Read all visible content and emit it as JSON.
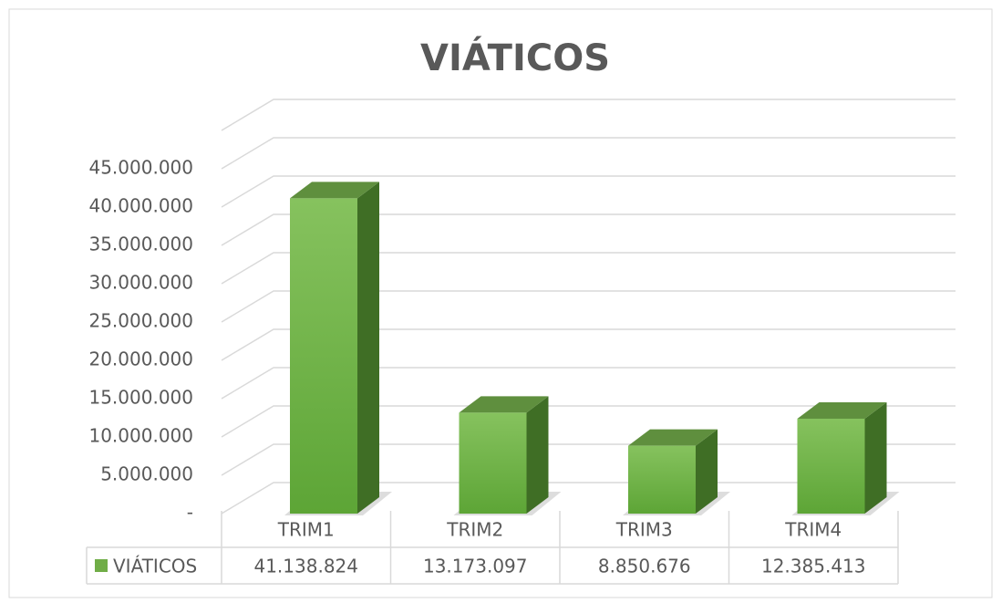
{
  "chart_data": {
    "type": "bar",
    "title": "VIÁTICOS",
    "categories": [
      "TRIM1",
      "TRIM2",
      "TRIM3",
      "TRIM4"
    ],
    "series": [
      {
        "name": "VIÁTICOS",
        "color": "#70ad47",
        "values": [
          41138824,
          13173097,
          8850676,
          12385413
        ],
        "value_labels": [
          "41.138.824",
          "13.173.097",
          "8.850.676",
          "12.385.413"
        ]
      }
    ],
    "ylim": [
      0,
      50000000
    ],
    "yticks": [
      {
        "value": 0,
        "label": "-"
      },
      {
        "value": 5000000,
        "label": "5.000.000"
      },
      {
        "value": 10000000,
        "label": "10.000.000"
      },
      {
        "value": 15000000,
        "label": "15.000.000"
      },
      {
        "value": 20000000,
        "label": "20.000.000"
      },
      {
        "value": 25000000,
        "label": "25.000.000"
      },
      {
        "value": 30000000,
        "label": "30.000.000"
      },
      {
        "value": 35000000,
        "label": "35.000.000"
      },
      {
        "value": 40000000,
        "label": "40.000.000"
      },
      {
        "value": 45000000,
        "label": "45.000.000"
      }
    ],
    "grid": true,
    "data_table": true
  }
}
